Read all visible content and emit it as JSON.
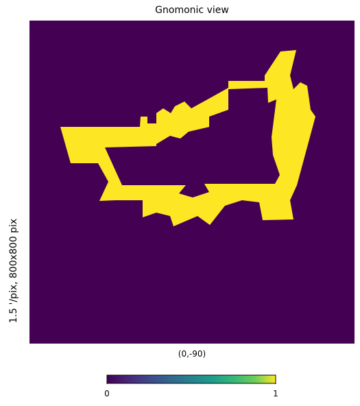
{
  "chart_data": {
    "type": "heatmap",
    "title": "Gnomonic view",
    "projection": "gnomonic",
    "side_label": "1.5 '/pix,   800x800 pix",
    "center_label": "(0,-90)",
    "colormap": "viridis",
    "colorbar": {
      "min": 0,
      "max": 1,
      "ticks": [
        "0",
        "1"
      ]
    },
    "background_value": 0,
    "shape_value": 1,
    "colors": {
      "low": "#440154",
      "high": "#fde725"
    }
  }
}
